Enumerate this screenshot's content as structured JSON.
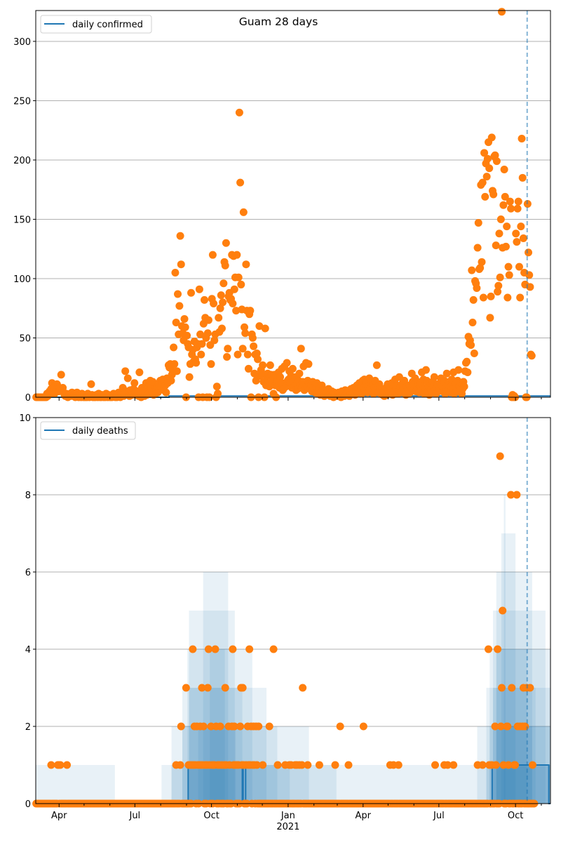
{
  "chart_data": [
    {
      "type": "scatter+line",
      "title": "Guam 28 days",
      "legend": [
        "daily confirmed"
      ],
      "legend_placement": "top-left",
      "x_start_date": "2020-03-04",
      "xlim_days": [
        0,
        618
      ],
      "ylim": [
        0,
        326
      ],
      "yticks": [
        0,
        50,
        100,
        150,
        200,
        250,
        300
      ],
      "grid": "horizontal",
      "forecast_marker_day": 590,
      "line": {
        "name": "daily confirmed",
        "segments": [
          [
            0,
            160,
            0
          ],
          [
            160,
            618,
            1
          ]
        ]
      },
      "points": [
        0,
        0,
        0,
        0,
        0,
        0,
        0,
        0,
        0,
        0,
        0,
        0,
        0,
        3,
        1,
        2,
        5,
        3,
        7,
        12,
        5,
        8,
        3,
        10,
        6,
        11,
        9,
        5,
        8,
        7,
        19,
        6,
        8,
        4,
        2,
        1,
        3,
        2,
        0,
        1,
        2,
        3,
        1,
        4,
        3,
        1,
        2,
        0,
        3,
        4,
        1,
        0,
        2,
        1,
        0,
        3,
        1,
        0,
        1,
        0,
        2,
        0,
        3,
        1,
        0,
        1,
        11,
        2,
        0,
        1,
        0,
        0,
        2,
        1,
        0,
        3,
        1,
        0,
        0,
        2,
        1,
        0,
        1,
        0,
        3,
        1,
        0,
        2,
        1,
        0,
        1,
        0,
        2,
        3,
        1,
        0,
        1,
        0,
        2,
        4,
        1,
        0,
        3,
        2,
        8,
        1,
        3,
        22,
        5,
        2,
        16,
        4,
        1,
        6,
        3,
        2,
        4,
        7,
        12,
        4,
        2,
        5,
        3,
        1,
        21,
        2,
        0,
        8,
        5,
        3,
        1,
        4,
        12,
        2,
        6,
        3,
        10,
        14,
        8,
        5,
        13,
        2,
        6,
        3,
        7,
        9,
        4,
        11,
        6,
        14,
        8,
        12,
        15,
        6,
        14,
        10,
        4,
        16,
        12,
        27,
        25,
        28,
        14,
        19,
        22,
        42,
        28,
        105,
        63,
        22,
        87,
        53,
        77,
        136,
        112,
        60,
        54,
        48,
        66,
        59,
        0,
        52,
        45,
        42,
        17,
        28,
        88,
        36,
        40,
        30,
        47,
        32,
        29,
        42,
        45,
        0,
        91,
        53,
        36,
        45,
        0,
        62,
        82,
        67,
        50,
        0,
        54,
        65,
        0,
        44,
        28,
        83,
        120,
        79,
        48,
        53,
        0,
        9,
        3,
        67,
        55,
        75,
        86,
        58,
        80,
        96,
        114,
        111,
        130,
        34,
        41,
        85,
        88,
        82,
        83,
        120,
        79,
        119,
        91,
        101,
        73,
        120,
        36,
        101,
        240,
        181,
        95,
        74,
        41,
        156,
        59,
        54,
        112,
        73,
        36,
        24,
        70,
        73,
        0,
        53,
        50,
        43,
        20,
        36,
        14,
        37,
        32,
        0,
        60,
        18,
        23,
        20,
        27,
        13,
        0,
        58,
        10,
        18,
        20,
        12,
        9,
        27,
        19,
        11,
        15,
        3,
        19,
        10,
        0,
        13,
        14,
        21,
        8,
        17,
        12,
        24,
        6,
        7,
        26,
        12,
        9,
        29,
        14,
        15,
        22,
        12,
        18,
        8,
        24,
        13,
        9,
        17,
        6,
        11,
        7,
        14,
        20,
        10,
        41,
        8,
        13,
        26,
        6,
        12,
        29,
        9,
        14,
        28,
        11,
        7,
        10,
        5,
        13,
        8,
        6,
        4,
        9,
        12,
        3,
        5,
        7,
        2,
        4,
        10,
        6,
        3,
        1,
        5,
        2,
        4,
        3,
        7,
        2,
        1,
        3,
        5,
        2,
        0,
        4,
        2,
        3,
        1,
        2,
        4,
        1,
        3,
        0,
        5,
        2,
        3,
        1,
        6,
        2,
        4,
        3,
        5,
        1,
        2,
        7,
        4,
        3,
        8,
        5,
        2,
        6,
        10,
        4,
        7,
        12,
        5,
        9,
        3,
        14,
        8,
        15,
        6,
        11,
        13,
        4,
        9,
        16,
        7,
        12,
        5,
        10,
        3,
        8,
        14,
        6,
        27,
        9,
        4,
        11,
        7,
        3,
        6,
        2,
        5,
        1,
        4,
        8,
        2,
        11,
        6,
        3,
        9,
        4,
        12,
        2,
        8,
        5,
        15,
        7,
        10,
        3,
        6,
        17,
        9,
        4,
        11,
        6,
        8,
        14,
        5,
        2,
        9,
        7,
        3,
        10,
        4,
        8,
        20,
        13,
        6,
        11,
        16,
        5,
        9,
        13,
        7,
        4,
        10,
        12,
        21,
        6,
        15,
        3,
        8,
        23,
        14,
        5,
        9,
        2,
        12,
        7,
        4,
        13,
        9,
        17,
        6,
        3,
        8,
        11,
        5,
        7,
        12,
        16,
        10,
        5,
        9,
        14,
        3,
        8,
        20,
        11,
        6,
        13,
        4,
        9,
        15,
        7,
        21,
        3,
        11,
        8,
        5,
        14,
        23,
        9,
        6,
        12,
        3,
        7,
        13,
        9,
        22,
        29,
        30,
        21,
        51,
        45,
        48,
        44,
        107,
        63,
        82,
        37,
        98,
        96,
        92,
        126,
        147,
        108,
        109,
        179,
        114,
        181,
        84,
        206,
        169,
        197,
        186,
        201,
        215,
        193,
        67,
        85,
        219,
        174,
        171,
        203,
        204,
        128,
        199,
        89,
        94,
        138,
        101,
        150,
        325,
        126,
        162,
        192,
        169,
        127,
        144,
        84,
        110,
        103,
        165,
        159,
        0,
        2,
        0,
        1,
        0,
        138,
        131,
        159,
        165,
        110,
        84,
        144,
        218,
        185,
        134,
        105,
        95,
        0,
        0,
        163,
        122,
        103,
        93,
        36,
        35
      ]
    },
    {
      "type": "scatter+line+band",
      "legend": [
        "daily deaths"
      ],
      "legend_placement": "top-left",
      "xlim_days": [
        0,
        618
      ],
      "ylim": [
        0,
        10
      ],
      "yticks": [
        0,
        2,
        4,
        6,
        8,
        10
      ],
      "grid": "horizontal",
      "forecast_marker_day": 590,
      "line": {
        "name": "daily deaths",
        "segments": [
          [
            0,
            183,
            0
          ],
          [
            183,
            248,
            1
          ],
          [
            248,
            249,
            0
          ],
          [
            249,
            252,
            1
          ],
          [
            252,
            548,
            0
          ],
          [
            548,
            616,
            1
          ],
          [
            616,
            618,
            0
          ]
        ]
      },
      "bands": {
        "outer": [
          [
            0,
            95,
            1
          ],
          [
            151,
            618,
            1
          ],
          [
            163,
            328,
            2
          ],
          [
            176,
            277,
            3
          ],
          [
            182,
            260,
            4
          ],
          [
            184,
            239,
            5
          ],
          [
            201,
            231,
            6
          ],
          [
            530,
            618,
            2
          ],
          [
            541,
            618,
            3
          ],
          [
            545,
            618,
            4
          ],
          [
            549,
            612,
            5
          ],
          [
            553,
            596,
            6
          ],
          [
            559,
            576,
            7
          ],
          [
            562,
            564,
            8
          ]
        ],
        "middle": [
          [
            163,
            361,
            1
          ],
          [
            176,
            290,
            2
          ],
          [
            184,
            248,
            3
          ],
          [
            209,
            227,
            4
          ],
          [
            541,
            618,
            1
          ],
          [
            545,
            618,
            2
          ],
          [
            549,
            600,
            3
          ],
          [
            553,
            590,
            4
          ]
        ],
        "inner": [
          [
            183,
            305,
            1
          ],
          [
            195,
            240,
            2
          ],
          [
            549,
            617,
            1
          ],
          [
            553,
            596,
            2
          ]
        ]
      },
      "points_last_day": 598,
      "points_nonzero": [
        [
          18,
          1
        ],
        [
          26,
          1
        ],
        [
          27,
          1
        ],
        [
          29,
          1
        ],
        [
          37,
          1
        ],
        [
          168,
          1
        ],
        [
          173,
          1
        ],
        [
          183,
          1
        ],
        [
          185,
          1
        ],
        [
          187,
          1
        ],
        [
          189,
          1
        ],
        [
          191,
          1
        ],
        [
          194,
          1
        ],
        [
          196,
          1
        ],
        [
          198,
          1
        ],
        [
          200,
          1
        ],
        [
          203,
          1
        ],
        [
          205,
          1
        ],
        [
          208,
          1
        ],
        [
          211,
          1
        ],
        [
          213,
          1
        ],
        [
          214,
          1
        ],
        [
          218,
          1
        ],
        [
          220,
          1
        ],
        [
          223,
          1
        ],
        [
          226,
          1
        ],
        [
          228,
          1
        ],
        [
          232,
          1
        ],
        [
          237,
          1
        ],
        [
          239,
          1
        ],
        [
          241,
          1
        ],
        [
          243,
          1
        ],
        [
          247,
          1
        ],
        [
          249,
          1
        ],
        [
          252,
          1
        ],
        [
          255,
          1
        ],
        [
          257,
          1
        ],
        [
          260,
          1
        ],
        [
          262,
          1
        ],
        [
          265,
          1
        ],
        [
          272,
          1
        ],
        [
          290,
          1
        ],
        [
          299,
          1
        ],
        [
          304,
          1
        ],
        [
          306,
          1
        ],
        [
          311,
          1
        ],
        [
          313,
          1
        ],
        [
          316,
          1
        ],
        [
          319,
          1
        ],
        [
          326,
          1
        ],
        [
          340,
          1
        ],
        [
          359,
          1
        ],
        [
          375,
          1
        ],
        [
          425,
          1
        ],
        [
          429,
          1
        ],
        [
          435,
          1
        ],
        [
          479,
          1
        ],
        [
          490,
          1
        ],
        [
          494,
          1
        ],
        [
          501,
          1
        ],
        [
          530,
          1
        ],
        [
          536,
          1
        ],
        [
          544,
          1
        ],
        [
          547,
          1
        ],
        [
          552,
          1
        ],
        [
          561,
          1
        ],
        [
          567,
          1
        ],
        [
          574,
          1
        ],
        [
          575,
          1
        ],
        [
          596,
          1
        ],
        [
          174,
          2
        ],
        [
          190,
          2
        ],
        [
          193,
          2
        ],
        [
          197,
          2
        ],
        [
          201,
          2
        ],
        [
          210,
          2
        ],
        [
          216,
          2
        ],
        [
          221,
          2
        ],
        [
          231,
          2
        ],
        [
          235,
          2
        ],
        [
          238,
          2
        ],
        [
          245,
          2
        ],
        [
          254,
          2
        ],
        [
          258,
          2
        ],
        [
          261,
          2
        ],
        [
          264,
          2
        ],
        [
          267,
          2
        ],
        [
          280,
          2
        ],
        [
          365,
          2
        ],
        [
          393,
          2
        ],
        [
          551,
          2
        ],
        [
          558,
          2
        ],
        [
          565,
          2
        ],
        [
          566,
          2
        ],
        [
          578,
          2
        ],
        [
          581,
          2
        ],
        [
          584,
          2
        ],
        [
          587,
          2
        ],
        [
          180,
          3
        ],
        [
          199,
          3
        ],
        [
          206,
          3
        ],
        [
          227,
          3
        ],
        [
          246,
          3
        ],
        [
          248,
          3
        ],
        [
          320,
          3
        ],
        [
          559,
          3
        ],
        [
          571,
          3
        ],
        [
          585,
          3
        ],
        [
          589,
          3
        ],
        [
          593,
          3
        ],
        [
          188,
          4
        ],
        [
          207,
          4
        ],
        [
          215,
          4
        ],
        [
          236,
          4
        ],
        [
          256,
          4
        ],
        [
          285,
          4
        ],
        [
          543,
          4
        ],
        [
          554,
          4
        ],
        [
          560,
          5
        ],
        [
          570,
          8
        ],
        [
          577,
          8
        ],
        [
          557,
          9
        ]
      ]
    }
  ],
  "x_axis": {
    "major_ticks": [
      {
        "day": 28,
        "label": "Apr"
      },
      {
        "day": 119,
        "label": "Jul"
      },
      {
        "day": 211,
        "label": "Oct"
      },
      {
        "day": 303,
        "label": "Jan",
        "sublabel": "2021"
      },
      {
        "day": 393,
        "label": "Apr"
      },
      {
        "day": 484,
        "label": "Jul"
      },
      {
        "day": 576,
        "label": "Oct"
      }
    ],
    "minor_tick_days": [
      58,
      89,
      150,
      181,
      242,
      272,
      334,
      362,
      423,
      454,
      515,
      546,
      607
    ]
  },
  "colors": {
    "points": "#ff7f0e",
    "line": "#1f77b4",
    "grid": "#b0b0b0"
  }
}
